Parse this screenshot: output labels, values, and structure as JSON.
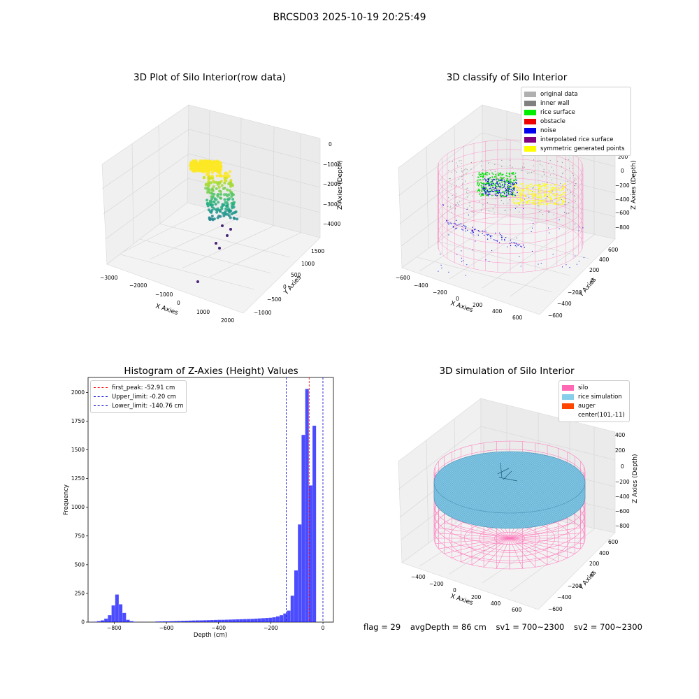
{
  "suptitle": "BRCSD03 2025-10-19 20:25:49",
  "chart_data": [
    {
      "id": "raw",
      "type": "scatter",
      "title": "3D Plot of Silo Interior(row data)",
      "xlabel": "X Axies",
      "ylabel": "Y Axies",
      "zlabel": "Z Axies (Depth)",
      "xticks": [
        "−3000",
        "−2000",
        "−1000",
        "0",
        "1000",
        "2000"
      ],
      "yticks": [
        "−1000",
        "−500",
        "0",
        "500",
        "1000",
        "1500"
      ],
      "zticks": [
        "0",
        "−1000",
        "−2000",
        "−3000",
        "−4000"
      ]
    },
    {
      "id": "classify",
      "type": "scatter",
      "title": "3D classify of Silo Interior",
      "xlabel": "X Axies",
      "ylabel": "Y Axies",
      "zlabel": "Z Axies (Depth)",
      "xticks": [
        "−600",
        "−400",
        "−200",
        "0",
        "200",
        "400",
        "600"
      ],
      "yticks": [
        "−600",
        "−400",
        "−200",
        "0",
        "200",
        "400",
        "600"
      ],
      "zticks": [
        "200",
        "0",
        "−200",
        "−400",
        "−600",
        "−800"
      ],
      "legend": [
        {
          "label": "original data",
          "color": "#b0b0b0"
        },
        {
          "label": "inner wall",
          "color": "#808080"
        },
        {
          "label": "rice surface",
          "color": "#00ee00"
        },
        {
          "label": "obstacle",
          "color": "#ee0000"
        },
        {
          "label": "noise",
          "color": "#0000ee"
        },
        {
          "label": "interpolated rice surface",
          "color": "#800080"
        },
        {
          "label": "symmetric generated points",
          "color": "#ffff00"
        }
      ]
    },
    {
      "id": "histogram",
      "type": "bar",
      "title": "Histogram of Z-Axies (Height) Values",
      "xlabel": "Depth (cm)",
      "ylabel": "Frequency",
      "xlim": [
        -900,
        40
      ],
      "ylim": [
        0,
        2130
      ],
      "xticks": [
        -800,
        -600,
        -400,
        -200,
        0
      ],
      "yticks": [
        0,
        250,
        500,
        750,
        1000,
        1250,
        1500,
        1750,
        2000
      ],
      "bin_width": 14,
      "bin_starts": [
        -880,
        -866,
        -852,
        -838,
        -824,
        -810,
        -796,
        -782,
        -768,
        -754,
        -740,
        -726,
        -642,
        -628,
        -614,
        -600,
        -586,
        -572,
        -558,
        -544,
        -530,
        -516,
        -502,
        -488,
        -474,
        -460,
        -446,
        -432,
        -418,
        -404,
        -390,
        -376,
        -362,
        -348,
        -334,
        -320,
        -306,
        -292,
        -278,
        -264,
        -250,
        -236,
        -222,
        -208,
        -194,
        -180,
        -166,
        -152,
        -138,
        -124,
        -110,
        -96,
        -82,
        -68,
        -54,
        -40,
        -26,
        -12
      ],
      "counts": [
        3,
        8,
        15,
        30,
        60,
        145,
        240,
        155,
        80,
        20,
        8,
        3,
        5,
        6,
        7,
        7,
        8,
        9,
        10,
        11,
        12,
        13,
        14,
        15,
        15,
        16,
        17,
        18,
        19,
        20,
        20,
        21,
        22,
        23,
        24,
        25,
        26,
        27,
        28,
        30,
        32,
        34,
        36,
        38,
        42,
        50,
        60,
        75,
        100,
        230,
        450,
        850,
        1630,
        2030,
        1190,
        1710,
        0,
        0
      ],
      "bar_color": "#0000ff",
      "vlines": [
        {
          "label": "first_peak: -52.91 cm",
          "value": -52.91,
          "color": "#ff0000"
        },
        {
          "label": "Upper_limit: -0.20 cm",
          "value": -0.2,
          "color": "#0000cc"
        },
        {
          "label": "Lower_limit: -140.76 cm",
          "value": -140.76,
          "color": "#0000cc"
        }
      ]
    },
    {
      "id": "simulation",
      "type": "surface",
      "title": "3D simulation of Silo Interior",
      "xlabel": "X Axies",
      "ylabel": "Y Axies",
      "zlabel": "Z Axies (Depth)",
      "xticks": [
        "−400",
        "−200",
        "0",
        "200",
        "400",
        "600"
      ],
      "yticks": [
        "−600",
        "−400",
        "−200",
        "0",
        "200",
        "400",
        "600"
      ],
      "zticks": [
        "400",
        "200",
        "0",
        "−200",
        "−400",
        "−600",
        "−800"
      ],
      "legend": [
        {
          "label": "silo",
          "color": "#ff69b4"
        },
        {
          "label": "rice simulation",
          "color": "#87ceeb"
        },
        {
          "label": "auger",
          "color": "#ff4500"
        },
        {
          "label": "center(101,-11)",
          "color": ""
        }
      ]
    }
  ],
  "footer": {
    "flag": "flag = 29",
    "avg_depth": "avgDepth = 86 cm",
    "sv1": "sv1 = 700~2300",
    "sv2": "sv2 = 700~2300"
  }
}
